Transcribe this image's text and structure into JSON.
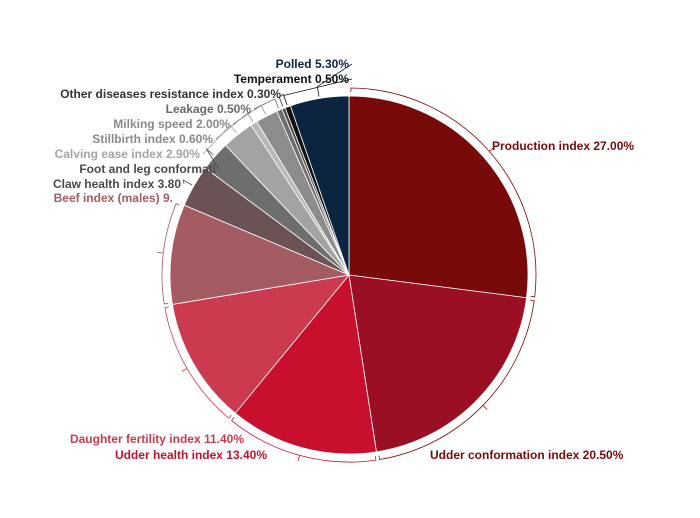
{
  "chart_data": {
    "type": "pie",
    "title": "",
    "slices": [
      {
        "label": "Production index",
        "value": 27.0,
        "display": "Production index 27.00%",
        "color": "#790a0a",
        "text_color": "#790a0a"
      },
      {
        "label": "Udder conformation index",
        "value": 20.5,
        "display": "Udder conformation index 20.50%",
        "color": "#9b0f24",
        "text_color": "#790a0a"
      },
      {
        "label": "Udder health index",
        "value": 13.4,
        "display": "Udder health index 13.40%",
        "color": "#c8102e",
        "text_color": "#c8102e"
      },
      {
        "label": "Daughter fertility index",
        "value": 11.4,
        "display": "Daughter fertility index 11.40%",
        "color": "#cc3a4f",
        "text_color": "#cc3a4f"
      },
      {
        "label": "Beef index (males)",
        "value": 9.0,
        "display": "Beef index (males) 9.",
        "color": "#a45b62",
        "text_color": "#a45b62"
      },
      {
        "label": "Claw health index",
        "value": 3.8,
        "display": "Claw health index 3.80",
        "color": "#6b5355",
        "text_color": "#4a4a4a"
      },
      {
        "label": "Foot and leg conformation",
        "value": 2.7,
        "display": "Foot and leg conformati",
        "color": "#6e6e6e",
        "text_color": "#4a4a4a"
      },
      {
        "label": "Calving ease index",
        "value": 2.9,
        "display": "Calving ease index 2.90%",
        "color": "#a3a3a3",
        "text_color": "#a3a3a3"
      },
      {
        "label": "Stillbirth index",
        "value": 0.6,
        "display": "Stillbirth index 0.60%",
        "color": "#b8b8b8",
        "text_color": "#8a8a8a"
      },
      {
        "label": "Milking speed",
        "value": 2.0,
        "display": "Milking speed 2.00%",
        "color": "#8c8c8c",
        "text_color": "#8a8a8a"
      },
      {
        "label": "Leakage",
        "value": 0.5,
        "display": "Leakage 0.50%",
        "color": "#6e6e6e",
        "text_color": "#6a6a6a"
      },
      {
        "label": "Other diseases resistance index",
        "value": 0.3,
        "display": "Other diseases resistance index 0.30%",
        "color": "#4a4a4a",
        "text_color": "#333333"
      },
      {
        "label": "Temperament",
        "value": 0.5,
        "display": "Temperament 0.50%",
        "color": "#111111",
        "text_color": "#111111"
      },
      {
        "label": "Polled",
        "value": 5.3,
        "display": "Polled 5.30%",
        "color": "#0b2540",
        "text_color": "#0b2540"
      }
    ]
  }
}
